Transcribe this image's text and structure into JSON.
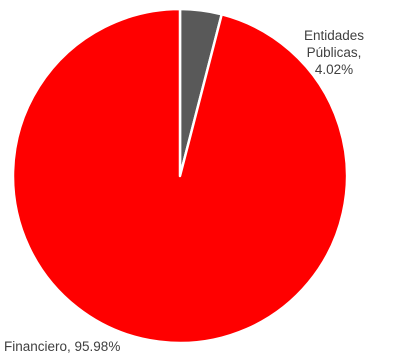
{
  "chart_data": {
    "type": "pie",
    "title": "",
    "start_angle_deg": 0,
    "direction": "clockwise",
    "legend": "none",
    "slices": [
      {
        "name": "Entidades Públicas",
        "value": 4.02,
        "label_lines": [
          "Entidades",
          "Públicas,",
          "4.02%"
        ],
        "color": "#595959"
      },
      {
        "name": "Financiero",
        "value": 95.98,
        "label_lines": [
          "Financiero, 95.98%"
        ],
        "color": "#ff0000"
      }
    ],
    "separator_color": "#ffffff"
  }
}
